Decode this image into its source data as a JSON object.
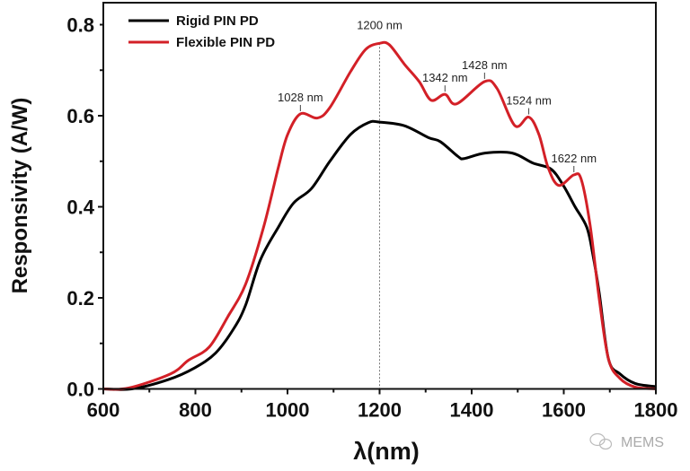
{
  "chart_data": {
    "type": "line",
    "title": "",
    "xlabel": "λ(nm)",
    "ylabel": "Responsivity (A/W)",
    "xlim": [
      600,
      1800
    ],
    "ylim": [
      0,
      0.8
    ],
    "xticks": [
      600,
      800,
      1000,
      1200,
      1400,
      1600,
      1800
    ],
    "xtick_labels": [
      "600",
      "800",
      "1000",
      "1200",
      "1400",
      "1600",
      "1800"
    ],
    "yticks": [
      0.0,
      0.2,
      0.4,
      0.6,
      0.8
    ],
    "ytick_labels": [
      "0.0",
      "0.2",
      "0.4",
      "0.6",
      "0.8"
    ],
    "grid": false,
    "legend_position": "top-left",
    "series": [
      {
        "name": "Rigid PIN PD",
        "color": "#000000",
        "x": [
          600,
          662,
          740,
          798,
          844,
          883,
          909,
          941,
          980,
          1013,
          1052,
          1092,
          1137,
          1176,
          1200,
          1254,
          1306,
          1332,
          1371,
          1384,
          1429,
          1488,
          1533,
          1572,
          1599,
          1624,
          1650,
          1663,
          1677,
          1697,
          1722,
          1755,
          1800
        ],
        "y": [
          0,
          0,
          0.02,
          0.046,
          0.079,
          0.132,
          0.184,
          0.283,
          0.355,
          0.408,
          0.44,
          0.5,
          0.559,
          0.585,
          0.586,
          0.578,
          0.552,
          0.543,
          0.51,
          0.506,
          0.518,
          0.518,
          0.496,
          0.483,
          0.447,
          0.401,
          0.355,
          0.296,
          0.211,
          0.066,
          0.033,
          0.012,
          0.005
        ]
      },
      {
        "name": "Flexible PIN PD",
        "color": "#d32027",
        "x": [
          600,
          655,
          746,
          785,
          830,
          870,
          909,
          948,
          980,
          1000,
          1028,
          1065,
          1092,
          1137,
          1170,
          1200,
          1221,
          1254,
          1286,
          1312,
          1342,
          1367,
          1428,
          1455,
          1494,
          1524,
          1546,
          1566,
          1589,
          1622,
          1638,
          1657,
          1677,
          1697,
          1722,
          1755,
          1800
        ],
        "y": [
          0,
          0.002,
          0.033,
          0.063,
          0.092,
          0.158,
          0.23,
          0.355,
          0.486,
          0.558,
          0.604,
          0.595,
          0.618,
          0.697,
          0.746,
          0.759,
          0.756,
          0.713,
          0.675,
          0.634,
          0.647,
          0.626,
          0.675,
          0.66,
          0.578,
          0.597,
          0.559,
          0.486,
          0.447,
          0.47,
          0.46,
          0.361,
          0.198,
          0.066,
          0.023,
          0.004,
          0
        ]
      }
    ],
    "annotations": [
      {
        "text": "1028 nm",
        "x": 1028,
        "y": 0.604
      },
      {
        "text": "1200 nm",
        "x": 1200,
        "y": 0.759
      },
      {
        "text": "1342 nm",
        "x": 1342,
        "y": 0.647
      },
      {
        "text": "1428 nm",
        "x": 1428,
        "y": 0.675
      },
      {
        "text": "1524 nm",
        "x": 1524,
        "y": 0.597
      },
      {
        "text": "1622 nm",
        "x": 1622,
        "y": 0.47
      }
    ],
    "reference_line": {
      "x": 1200,
      "style": "dotted"
    }
  },
  "watermark": {
    "text": "MEMS",
    "icon": "wechat-icon"
  }
}
